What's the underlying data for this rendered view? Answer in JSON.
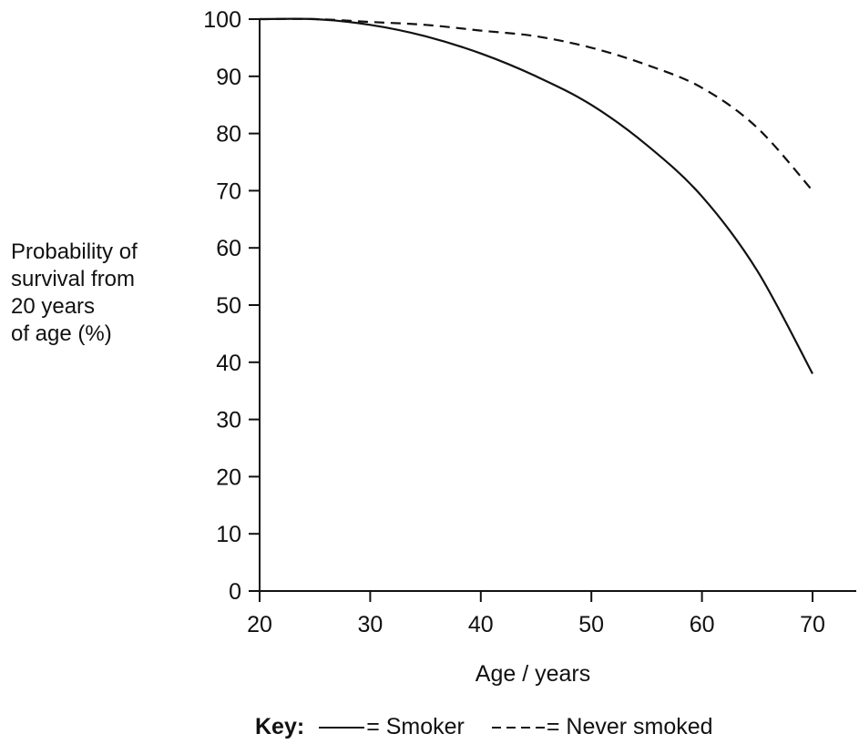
{
  "chart_data": {
    "type": "line",
    "title": "",
    "xlabel": "Age / years",
    "ylabel_lines": [
      "Probability of",
      "survival from",
      "20 years",
      "of age (%)"
    ],
    "xlim": [
      20,
      70
    ],
    "ylim": [
      0,
      100
    ],
    "x_ticks": [
      "20",
      "30",
      "40",
      "50",
      "60",
      "70"
    ],
    "y_ticks": [
      "0",
      "10",
      "20",
      "30",
      "40",
      "50",
      "60",
      "70",
      "80",
      "90",
      "100"
    ],
    "grid": false,
    "legend_position": "bottom",
    "legend_title": "Key:",
    "series": [
      {
        "name": "Smoker",
        "line_style": "solid",
        "x": [
          20,
          25,
          30,
          35,
          40,
          45,
          50,
          55,
          60,
          65,
          70
        ],
        "y": [
          100,
          100,
          99,
          97,
          94,
          90,
          85,
          78,
          69,
          56,
          38
        ]
      },
      {
        "name": "Never smoked",
        "line_style": "dashed",
        "x": [
          20,
          25,
          30,
          35,
          40,
          45,
          50,
          55,
          60,
          65,
          70
        ],
        "y": [
          100,
          100,
          99.5,
          99,
          98,
          97,
          95,
          92,
          88,
          81,
          70
        ]
      }
    ]
  },
  "legend": {
    "title": "Key:",
    "smoker_label": "= Smoker",
    "never_label": "= Never smoked"
  },
  "colors": {
    "axis": "#111111",
    "line": "#111111"
  }
}
